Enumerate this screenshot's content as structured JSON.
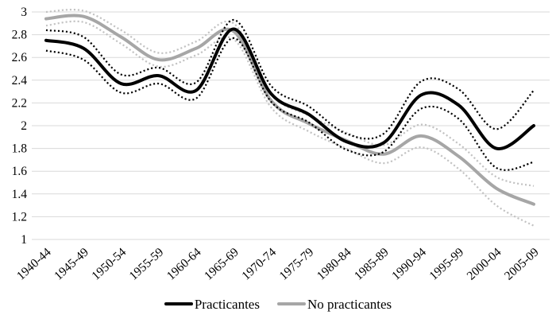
{
  "chart_data": {
    "type": "line",
    "title": "",
    "xlabel": "",
    "ylabel": "",
    "categories": [
      "1940-44",
      "1945-49",
      "1950-54",
      "1955-59",
      "1960-64",
      "1965-69",
      "1970-74",
      "1975-79",
      "1980-84",
      "1985-89",
      "1990-94",
      "1995-99",
      "2000-04",
      "2005-09"
    ],
    "y_axis": {
      "min": 1,
      "max": 3,
      "step": 0.2,
      "tick_labels": [
        "3",
        "2.8",
        "2.6",
        "2.4",
        "2.2",
        "2",
        "1.8",
        "1.6",
        "1.4",
        "1.2",
        "1"
      ]
    },
    "grid": true,
    "gridline_color": "#d9d9d9",
    "text_color": "#000000",
    "series": [
      {
        "name": "No practicantes CI upper",
        "role": "ci-upper",
        "color": "#c2c2c2",
        "style": "dotted",
        "values": [
          3.0,
          3.01,
          2.84,
          2.64,
          2.74,
          2.9,
          2.28,
          2.09,
          1.94,
          1.83,
          2.01,
          1.84,
          1.55,
          1.47
        ]
      },
      {
        "name": "No practicantes CI lower",
        "role": "ci-lower",
        "color": "#c2c2c2",
        "style": "dotted",
        "values": [
          2.88,
          2.91,
          2.72,
          2.52,
          2.62,
          2.76,
          2.16,
          1.95,
          1.8,
          1.67,
          1.81,
          1.62,
          1.3,
          1.12
        ]
      },
      {
        "name": "No practicantes",
        "role": "mean",
        "color": "#a6a6a6",
        "style": "solid",
        "values": [
          2.94,
          2.96,
          2.78,
          2.58,
          2.68,
          2.83,
          2.22,
          2.02,
          1.87,
          1.75,
          1.91,
          1.73,
          1.45,
          1.31
        ]
      },
      {
        "name": "Practicantes CI upper",
        "role": "ci-upper",
        "color": "#000000",
        "style": "dotted",
        "values": [
          2.84,
          2.78,
          2.45,
          2.51,
          2.38,
          2.93,
          2.35,
          2.17,
          1.93,
          1.93,
          2.39,
          2.32,
          1.97,
          2.31
        ]
      },
      {
        "name": "Practicantes CI lower",
        "role": "ci-lower",
        "color": "#000000",
        "style": "dotted",
        "values": [
          2.66,
          2.58,
          2.29,
          2.37,
          2.24,
          2.77,
          2.21,
          2.03,
          1.79,
          1.77,
          2.15,
          2.06,
          1.63,
          1.68
        ]
      },
      {
        "name": "Practicantes",
        "role": "mean",
        "color": "#000000",
        "style": "solid",
        "values": [
          2.75,
          2.68,
          2.37,
          2.44,
          2.31,
          2.85,
          2.28,
          2.1,
          1.86,
          1.85,
          2.27,
          2.18,
          1.8,
          2.0
        ]
      }
    ],
    "legend": {
      "position": "bottom",
      "items": [
        {
          "label": "Practicantes",
          "color": "#000000"
        },
        {
          "label": "No practicantes",
          "color": "#a6a6a6"
        }
      ]
    }
  }
}
